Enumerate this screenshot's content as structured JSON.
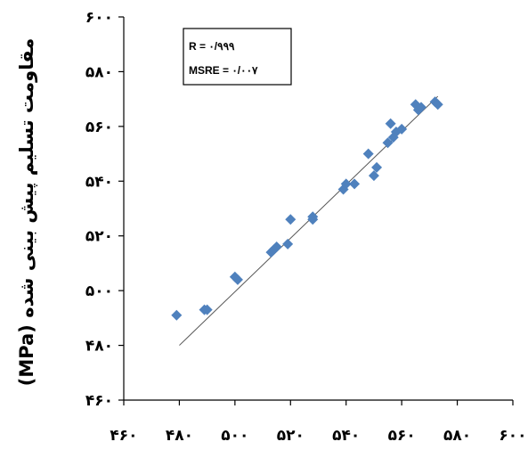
{
  "chart_data": {
    "type": "scatter",
    "ylabel": "مقاومت تسلیم پیش بینی شده (MPa)",
    "xlabel": "",
    "xlim": [
      460,
      600
    ],
    "ylim": [
      460,
      600
    ],
    "x_ticks": [
      460,
      480,
      500,
      520,
      540,
      560,
      580,
      600
    ],
    "y_ticks": [
      460,
      480,
      500,
      520,
      540,
      560,
      580,
      600
    ],
    "x_tick_labels": [
      "۴۶۰",
      "۴۸۰",
      "۵۰۰",
      "۵۲۰",
      "۵۴۰",
      "۵۶۰",
      "۵۸۰",
      "۶۰۰"
    ],
    "y_tick_labels": [
      "۴۶۰",
      "۴۸۰",
      "۵۰۰",
      "۵۲۰",
      "۵۴۰",
      "۵۶۰",
      "۵۸۰",
      "۶۰۰"
    ],
    "marker_color": "#4F81BD",
    "line_color": "#555555",
    "fit_line": {
      "x": [
        480,
        573
      ],
      "y": [
        480,
        571
      ]
    },
    "annotations": [
      "R = ۰/۹۹۹",
      "MSRE = ۰/۰۰۷"
    ],
    "points": [
      {
        "x": 479,
        "y": 491
      },
      {
        "x": 489,
        "y": 493
      },
      {
        "x": 490,
        "y": 493
      },
      {
        "x": 500,
        "y": 505
      },
      {
        "x": 501,
        "y": 504
      },
      {
        "x": 513,
        "y": 514
      },
      {
        "x": 514,
        "y": 515
      },
      {
        "x": 515,
        "y": 516
      },
      {
        "x": 519,
        "y": 517
      },
      {
        "x": 520,
        "y": 526
      },
      {
        "x": 528,
        "y": 526
      },
      {
        "x": 528,
        "y": 527
      },
      {
        "x": 539,
        "y": 537
      },
      {
        "x": 540,
        "y": 539
      },
      {
        "x": 543,
        "y": 539
      },
      {
        "x": 548,
        "y": 550
      },
      {
        "x": 550,
        "y": 542
      },
      {
        "x": 551,
        "y": 545
      },
      {
        "x": 555,
        "y": 554
      },
      {
        "x": 556,
        "y": 561
      },
      {
        "x": 557,
        "y": 556
      },
      {
        "x": 558,
        "y": 558
      },
      {
        "x": 560,
        "y": 559
      },
      {
        "x": 565,
        "y": 568
      },
      {
        "x": 566,
        "y": 566
      },
      {
        "x": 567,
        "y": 567
      },
      {
        "x": 572,
        "y": 569
      },
      {
        "x": 573,
        "y": 568
      }
    ]
  }
}
